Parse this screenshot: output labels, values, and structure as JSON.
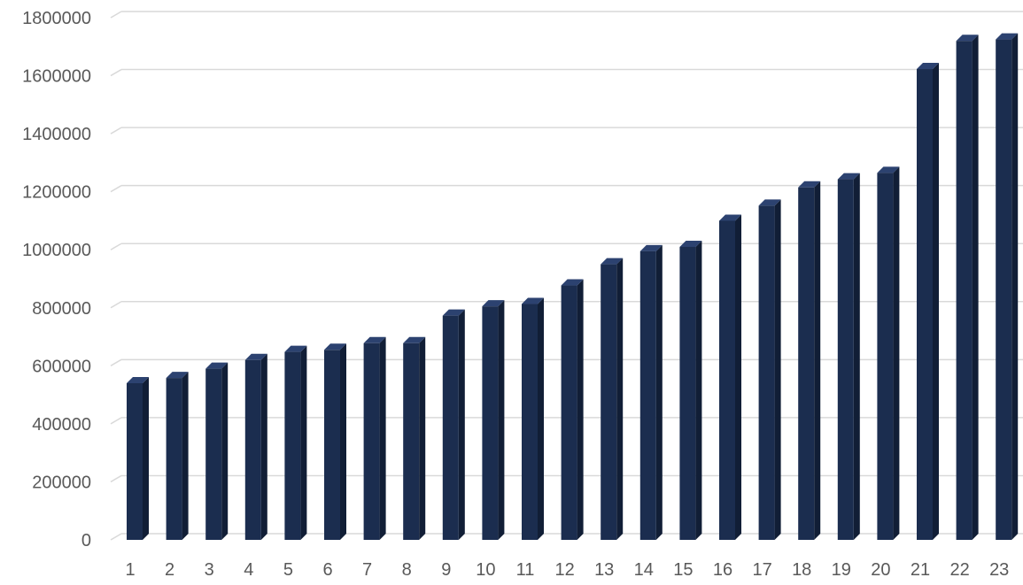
{
  "chart_data": {
    "type": "bar",
    "style": "3d-column",
    "categories": [
      "1",
      "2",
      "3",
      "4",
      "5",
      "6",
      "7",
      "8",
      "9",
      "10",
      "11",
      "12",
      "13",
      "14",
      "15",
      "16",
      "17",
      "18",
      "19",
      "20",
      "21",
      "22",
      "23"
    ],
    "values": [
      540000,
      558000,
      590000,
      620000,
      648000,
      655000,
      678000,
      678000,
      773000,
      805000,
      813000,
      877000,
      950000,
      995000,
      1010000,
      1100000,
      1152000,
      1215000,
      1243000,
      1265000,
      1623000,
      1720000,
      1725000
    ],
    "yticks": [
      "0",
      "200000",
      "400000",
      "600000",
      "800000",
      "1000000",
      "1200000",
      "1400000",
      "1600000",
      "1800000"
    ],
    "ylim": [
      0,
      1800000
    ],
    "title": "",
    "xlabel": "",
    "ylabel": "",
    "grid": true,
    "legend": "none",
    "colors": {
      "bar_front": "#1b2d4f",
      "bar_side": "#111e36",
      "bar_top": "#2c4270",
      "grid": "#d9d9d9",
      "tick_text": "#595959"
    }
  }
}
